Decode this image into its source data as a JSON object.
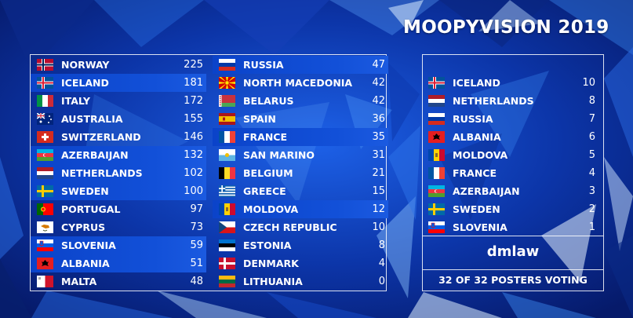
{
  "title": "MOOPYVISION 2019",
  "scoreboard": [
    {
      "country": "NORWAY",
      "flag": "norway-flag-icon",
      "score": "225",
      "points": ""
    },
    {
      "country": "ICELAND",
      "flag": "iceland-flag-icon",
      "score": "181",
      "points": "10"
    },
    {
      "country": "ITALY",
      "flag": "italy-flag-icon",
      "score": "172",
      "points": ""
    },
    {
      "country": "AUSTRALIA",
      "flag": "australia-flag-icon",
      "score": "155",
      "points": ""
    },
    {
      "country": "SWITZERLAND",
      "flag": "switzerland-flag-icon",
      "score": "146",
      "points": ""
    },
    {
      "country": "AZERBAIJAN",
      "flag": "azerbaijan-flag-icon",
      "score": "132",
      "points": "3"
    },
    {
      "country": "NETHERLANDS",
      "flag": "netherlands-flag-icon",
      "score": "102",
      "points": "8"
    },
    {
      "country": "SWEDEN",
      "flag": "sweden-flag-icon",
      "score": "100",
      "points": "2"
    },
    {
      "country": "PORTUGAL",
      "flag": "portugal-flag-icon",
      "score": "97",
      "points": ""
    },
    {
      "country": "CYPRUS",
      "flag": "cyprus-flag-icon",
      "score": "73",
      "points": ""
    },
    {
      "country": "SLOVENIA",
      "flag": "slovenia-flag-icon",
      "score": "59",
      "points": "1"
    },
    {
      "country": "ALBANIA",
      "flag": "albania-flag-icon",
      "score": "51",
      "points": "6"
    },
    {
      "country": "MALTA",
      "flag": "malta-flag-icon",
      "score": "48",
      "points": ""
    },
    {
      "country": "RUSSIA",
      "flag": "russia-flag-icon",
      "score": "47",
      "points": "7"
    },
    {
      "country": "NORTH MACEDONIA",
      "flag": "north-macedonia-flag-icon",
      "score": "42",
      "points": ""
    },
    {
      "country": "BELARUS",
      "flag": "belarus-flag-icon",
      "score": "42",
      "points": ""
    },
    {
      "country": "SPAIN",
      "flag": "spain-flag-icon",
      "score": "36",
      "points": ""
    },
    {
      "country": "FRANCE",
      "flag": "france-flag-icon",
      "score": "35",
      "points": "4"
    },
    {
      "country": "SAN MARINO",
      "flag": "san-marino-flag-icon",
      "score": "31",
      "points": ""
    },
    {
      "country": "BELGIUM",
      "flag": "belgium-flag-icon",
      "score": "21",
      "points": ""
    },
    {
      "country": "GREECE",
      "flag": "greece-flag-icon",
      "score": "15",
      "points": ""
    },
    {
      "country": "MOLDOVA",
      "flag": "moldova-flag-icon",
      "score": "12",
      "points": "5"
    },
    {
      "country": "CZECH REPUBLIC",
      "flag": "czech-republic-flag-icon",
      "score": "10",
      "points": ""
    },
    {
      "country": "ESTONIA",
      "flag": "estonia-flag-icon",
      "score": "8",
      "points": ""
    },
    {
      "country": "DENMARK",
      "flag": "denmark-flag-icon",
      "score": "4",
      "points": ""
    },
    {
      "country": "LITHUANIA",
      "flag": "lithuania-flag-icon",
      "score": "0",
      "points": ""
    }
  ],
  "voting": {
    "given": [
      {
        "country": "ICELAND",
        "flag": "iceland-flag-icon",
        "points": "10"
      },
      {
        "country": "NETHERLANDS",
        "flag": "netherlands-flag-icon",
        "points": "8"
      },
      {
        "country": "RUSSIA",
        "flag": "russia-flag-icon",
        "points": "7"
      },
      {
        "country": "ALBANIA",
        "flag": "albania-flag-icon",
        "points": "6"
      },
      {
        "country": "MOLDOVA",
        "flag": "moldova-flag-icon",
        "points": "5"
      },
      {
        "country": "FRANCE",
        "flag": "france-flag-icon",
        "points": "4"
      },
      {
        "country": "AZERBAIJAN",
        "flag": "azerbaijan-flag-icon",
        "points": "3"
      },
      {
        "country": "SWEDEN",
        "flag": "sweden-flag-icon",
        "points": "2"
      },
      {
        "country": "SLOVENIA",
        "flag": "slovenia-flag-icon",
        "points": "1"
      }
    ],
    "voter": "dmlaw",
    "status": "32 OF 32 POSTERS VOTING"
  },
  "colors": {
    "background": "#0a2c8f",
    "highlight": "#0b43c9"
  }
}
